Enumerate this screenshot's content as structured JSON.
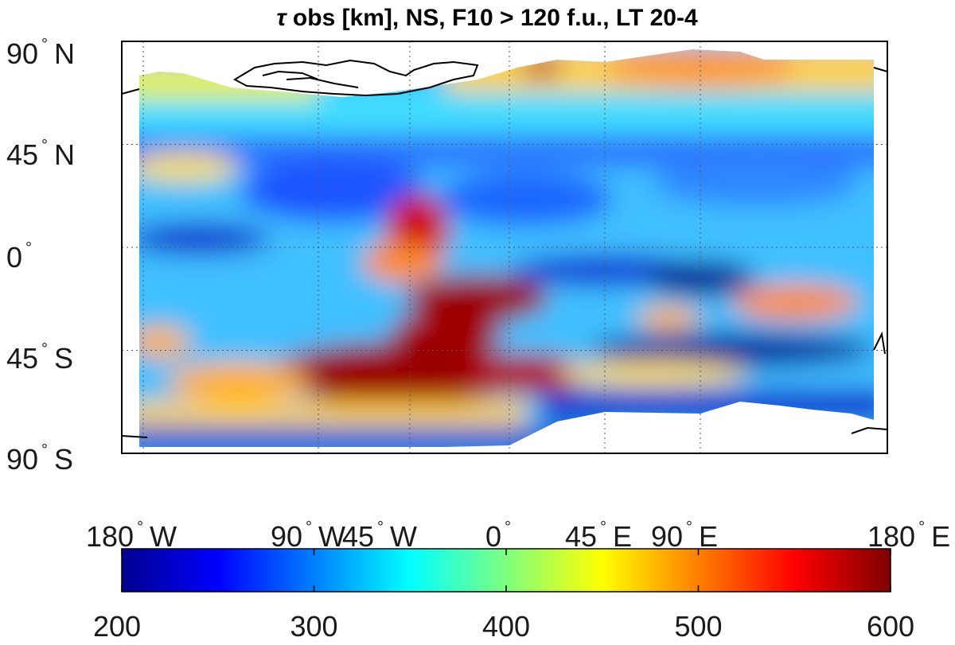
{
  "title": {
    "symbol": "τ",
    "text": " obs [km], NS, F10 > 120 f.u., LT 20-4"
  },
  "map": {
    "lat_ticks": [
      {
        "value": 90,
        "num": "90",
        "hem": "N"
      },
      {
        "value": 45,
        "num": "45",
        "hem": "N"
      },
      {
        "value": 0,
        "num": "0",
        "hem": ""
      },
      {
        "value": -45,
        "num": "45",
        "hem": "S"
      },
      {
        "value": -90,
        "num": "90",
        "hem": "S"
      }
    ],
    "lon_ticks": [
      {
        "value": -180,
        "num": "180",
        "hem": "W"
      },
      {
        "value": -90,
        "num": "90",
        "hem": "W"
      },
      {
        "value": -45,
        "num": "45",
        "hem": "W"
      },
      {
        "value": 0,
        "num": "0",
        "hem": ""
      },
      {
        "value": 45,
        "num": "45",
        "hem": "E"
      },
      {
        "value": 90,
        "num": "90",
        "hem": "E"
      },
      {
        "value": 180,
        "num": "180",
        "hem": "E"
      }
    ],
    "degree_symbol": "°",
    "grid": true
  },
  "colorbar": {
    "colormap": "jet",
    "range": [
      200,
      600
    ],
    "ticks": [
      200,
      300,
      400,
      500,
      600
    ],
    "tick_labels": [
      "200",
      "300",
      "400",
      "500",
      "600"
    ]
  },
  "colors": {
    "jet": [
      "#00008f",
      "#0000ff",
      "#007fff",
      "#00ffff",
      "#7fff7f",
      "#ffff00",
      "#ff7f00",
      "#ff0000",
      "#7f0000"
    ]
  }
}
